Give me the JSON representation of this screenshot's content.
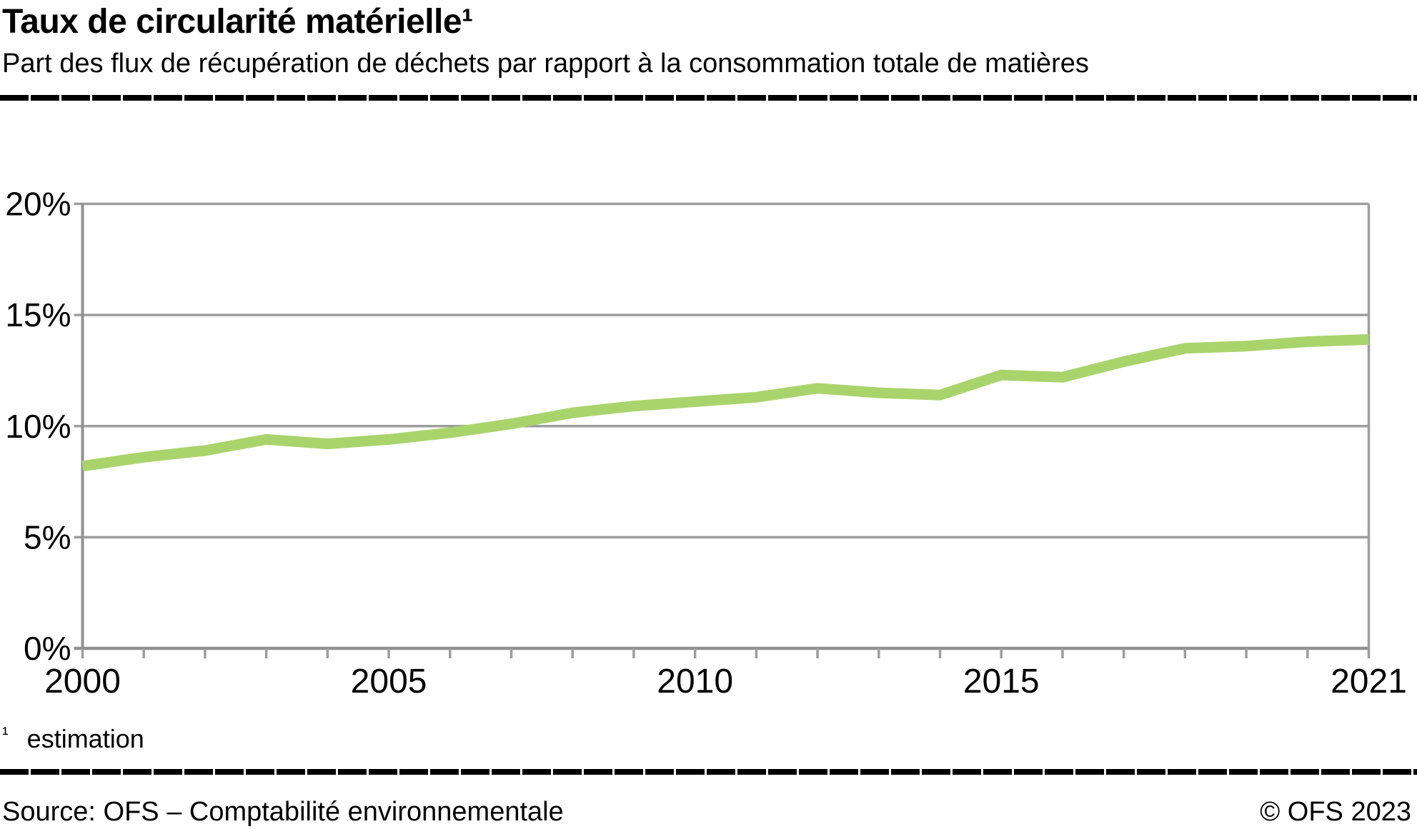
{
  "header": {
    "title": "Taux de circularité matérielle¹",
    "subtitle": "Part des flux de récupération de déchets par rapport à la consommation totale de matières"
  },
  "footnote": {
    "marker": "¹",
    "text": "estimation"
  },
  "footer": {
    "source": "Source: OFS – Comptabilité environnementale",
    "copyright": "© OFS 2023"
  },
  "colors": {
    "line": "#a9d46c",
    "grid": "#9d9d9d",
    "axis": "#919191",
    "text": "#000000",
    "rule": "#000000"
  },
  "chart_data": {
    "type": "line",
    "title": "Taux de circularité matérielle",
    "x": [
      2000,
      2001,
      2002,
      2003,
      2004,
      2005,
      2006,
      2007,
      2008,
      2009,
      2010,
      2011,
      2012,
      2013,
      2014,
      2015,
      2016,
      2017,
      2018,
      2019,
      2020,
      2021
    ],
    "series": [
      {
        "name": "Taux de circularité matérielle (estimation)",
        "values": [
          8.2,
          8.6,
          8.9,
          9.4,
          9.2,
          9.4,
          9.7,
          10.1,
          10.6,
          10.9,
          11.1,
          11.3,
          11.7,
          11.5,
          11.4,
          12.3,
          12.2,
          12.9,
          13.5,
          13.6,
          13.8,
          13.9
        ]
      }
    ],
    "xlabel": "",
    "ylabel": "",
    "ylim": [
      0,
      20
    ],
    "y_ticks": [
      0,
      5,
      10,
      15,
      20
    ],
    "y_tick_suffix": "%",
    "x_tick_years": [
      2000,
      2005,
      2010,
      2015,
      2021
    ],
    "grid": true,
    "legend": "none"
  }
}
